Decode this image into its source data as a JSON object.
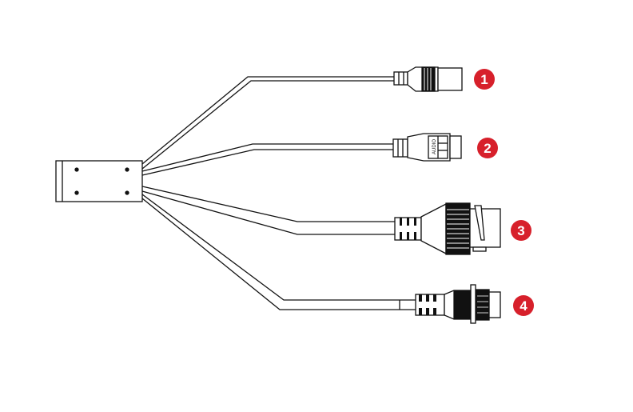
{
  "colors": {
    "badge": "#d7202b",
    "line": "#111111",
    "background": "#ffffff"
  },
  "connectors": [
    {
      "number": "1",
      "type": "dc-power-jack"
    },
    {
      "number": "2",
      "type": "audio-terminal",
      "label": "AUDIO"
    },
    {
      "number": "3",
      "type": "rj45-waterproof"
    },
    {
      "number": "4",
      "type": "circular-aviation-connector"
    }
  ]
}
